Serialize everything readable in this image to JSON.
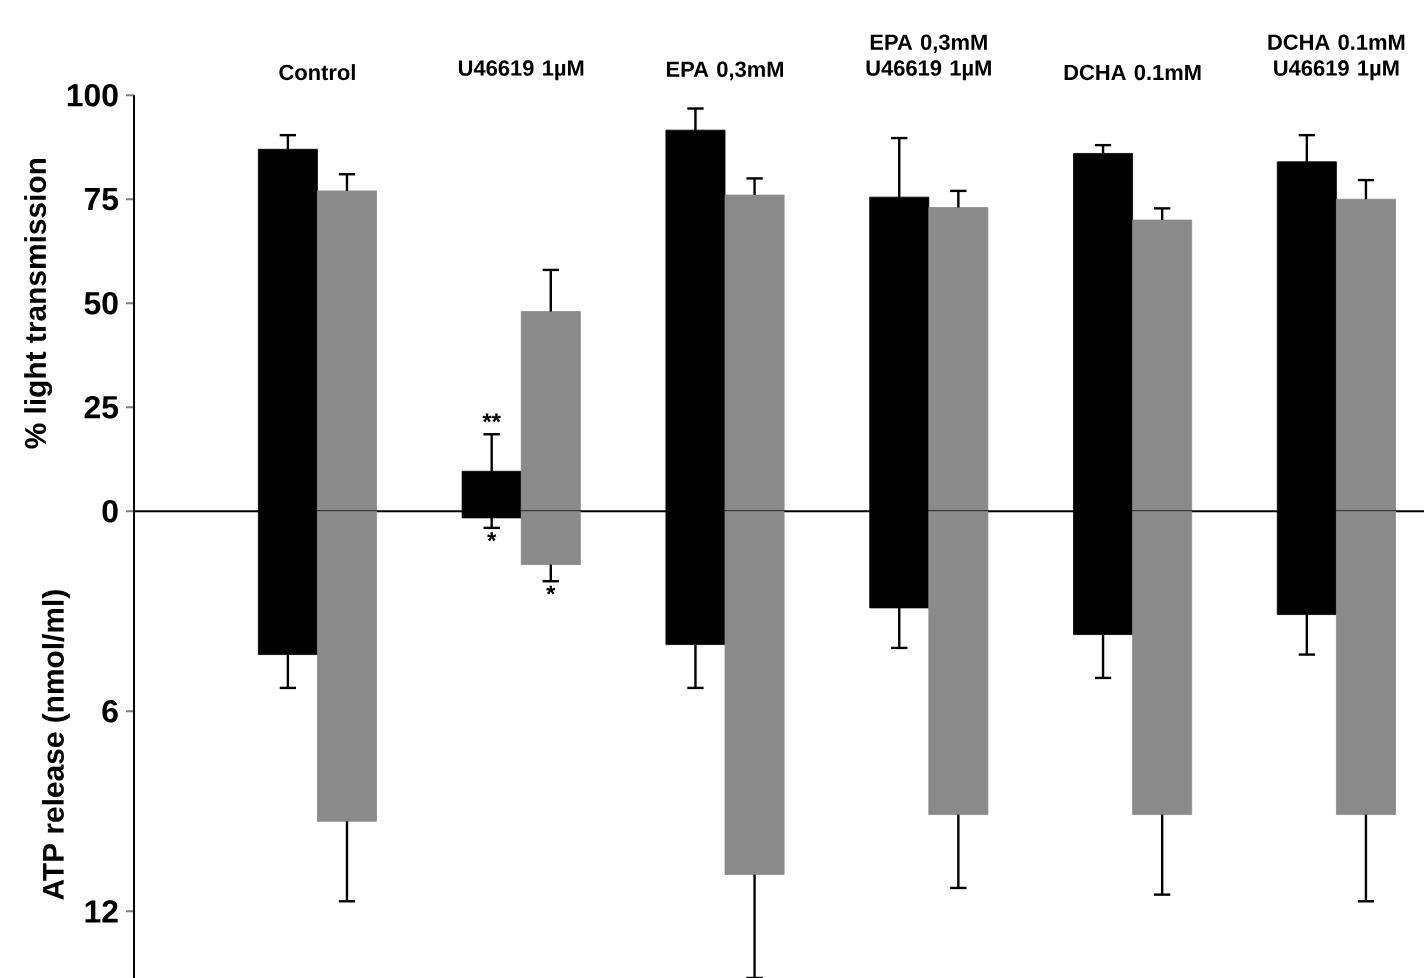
{
  "chart_data": [
    {
      "type": "bar",
      "ylabel": "% light transmission",
      "categories": [
        "Control",
        "U46619 1µM",
        "EPA 0,3mM",
        "EPA 0,3mM U46619 1µM",
        "DCHA 0.1mM",
        "DCHA 0.1mM U46619 1µM"
      ],
      "series": [
        {
          "color": "#000000",
          "values": [
            87,
            9.6,
            91.6,
            75.5,
            86,
            84
          ],
          "errors": [
            [
              87,
              90.4
            ],
            [
              9.6,
              18.5
            ],
            [
              91.6,
              96.8
            ],
            [
              75.5,
              89.7
            ],
            [
              86,
              88
            ],
            [
              84,
              90.4
            ]
          ]
        },
        {
          "color": "#8a8a8a",
          "values": [
            77,
            48,
            76,
            73,
            70,
            75
          ],
          "errors": [
            [
              77,
              81
            ],
            [
              48,
              58
            ],
            [
              76,
              80
            ],
            [
              73,
              77
            ],
            [
              70,
              72.8
            ],
            [
              75,
              79.6
            ]
          ]
        }
      ],
      "ylim": [
        0,
        100
      ],
      "yticks": [
        0,
        25,
        50,
        75,
        100
      ],
      "annotations": [
        {
          "text": "**",
          "x": "U46619 1µM",
          "y": 18.5
        }
      ]
    },
    {
      "type": "bar",
      "ylabel": "ATP release (nmol/ml)",
      "categories": [
        "Control",
        "U46619 1µM",
        "EPA 0,3mM",
        "EPA 0,3mM U46619 1µM",
        "DCHA 0.1mM",
        "DCHA 0.1mM U46619 1µM"
      ],
      "tick_labels": "y",
      "series": [
        {
          "color": "#000000",
          "values": [
            4.3,
            0.2,
            4.0,
            2.9,
            3.7,
            3.1
          ],
          "errors": [
            [
              4.3,
              5.3
            ],
            [
              0.2,
              0.5
            ],
            [
              4.0,
              5.3
            ],
            [
              2.9,
              4.1
            ],
            [
              3.7,
              5.0
            ],
            [
              3.1,
              4.3
            ]
          ]
        },
        {
          "color": "#8a8a8a",
          "values": [
            9.3,
            1.6,
            10.9,
            9.1,
            9.1,
            9.1
          ],
          "errors": [
            [
              9.3,
              11.7
            ],
            [
              1.6,
              2.1
            ],
            [
              10.9,
              14
            ],
            [
              9.1,
              11.3
            ],
            [
              9.1,
              11.5
            ],
            [
              9.1,
              11.7
            ]
          ]
        }
      ],
      "ylim": [
        14,
        0
      ],
      "yticks": [
        6,
        12
      ],
      "annotations": [
        {
          "text": "*",
          "x": "U46619 1µM",
          "y": 0.5
        },
        {
          "text": "*",
          "x": "U46619 1µM",
          "y": 1.6
        }
      ]
    }
  ]
}
